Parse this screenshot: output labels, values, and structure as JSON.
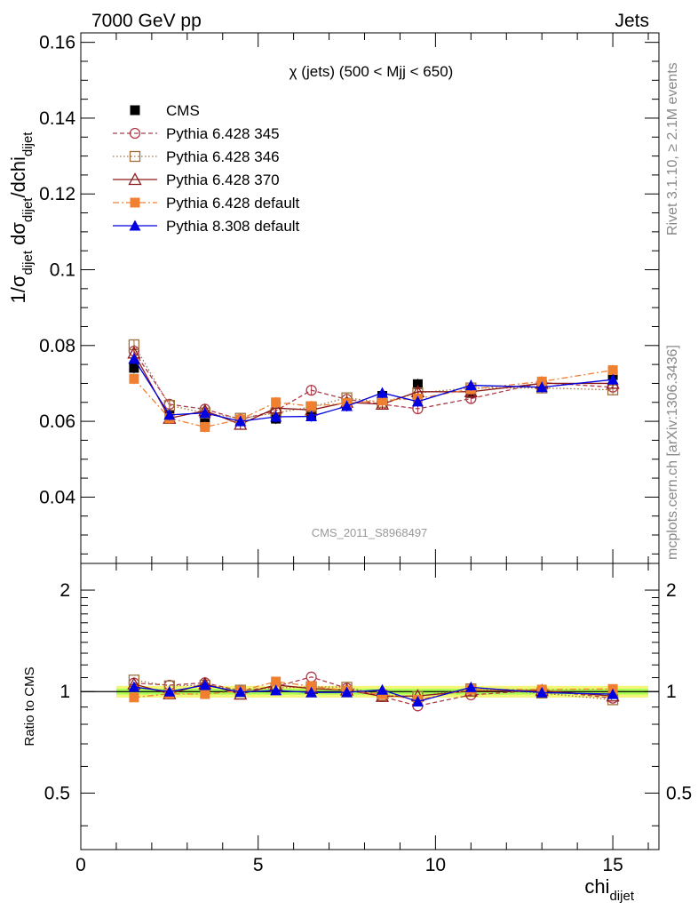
{
  "header": {
    "left": "7000 GeV pp",
    "right": "Jets"
  },
  "side_labels": {
    "rivet": "Rivet 3.1.10, ≥ 2.1M events",
    "mcplots": "mcplots.cern.ch [arXiv:1306.3436]"
  },
  "chart_data": [
    {
      "type": "scatter",
      "title": "χ (jets) (500 < Mjj <  650)",
      "ylabel": "1/σ_dijet dσ_dijet/dchi_dijet",
      "xlabel": "chi_dijet",
      "watermark": "CMS_2011_S8968497",
      "xlim": [
        0,
        16.3
      ],
      "ylim": [
        0.0225,
        0.1625
      ],
      "x_ticks": [
        "0",
        "5",
        "10",
        "15"
      ],
      "y_ticks": [
        "0.04",
        "0.06",
        "0.08",
        "0.1",
        "0.12",
        "0.14",
        "0.16"
      ],
      "legend_position": "top-left",
      "x": [
        1.5,
        2.5,
        3.5,
        4.5,
        5.5,
        6.5,
        7.5,
        8.5,
        9.5,
        11.0,
        13.0,
        15.0
      ],
      "series": [
        {
          "name": "CMS",
          "color": "#000000",
          "marker": "square-filled",
          "line": "none",
          "values": [
            0.0741,
            0.0617,
            0.0595,
            0.0602,
            0.0607,
            0.0617,
            0.0643,
            0.0667,
            0.0698,
            0.0675,
            0.0695,
            0.0722
          ]
        },
        {
          "name": "Pythia 6.428 345",
          "color": "#b03a48",
          "marker": "circle-open",
          "line": "dashed",
          "values": [
            0.0785,
            0.0645,
            0.0632,
            0.0605,
            0.0628,
            0.0682,
            0.0658,
            0.0645,
            0.0633,
            0.066,
            0.0702,
            0.069
          ]
        },
        {
          "name": "Pythia 6.428 346",
          "color": "#a0703a",
          "marker": "square-open",
          "line": "dotted",
          "values": [
            0.0802,
            0.0642,
            0.0622,
            0.0608,
            0.0622,
            0.0638,
            0.0662,
            0.065,
            0.0675,
            0.0688,
            0.0688,
            0.0683
          ]
        },
        {
          "name": "Pythia 6.428 370",
          "color": "#8b1a1a",
          "marker": "triangle-open",
          "line": "solid",
          "values": [
            0.078,
            0.0608,
            0.0628,
            0.0592,
            0.0635,
            0.063,
            0.065,
            0.0645,
            0.0678,
            0.0678,
            0.07,
            0.07
          ]
        },
        {
          "name": "Pythia 6.428 default",
          "color": "#f07f30",
          "marker": "square-filled",
          "line": "dashdot",
          "values": [
            0.0712,
            0.0608,
            0.0585,
            0.0605,
            0.065,
            0.064,
            0.0648,
            0.0655,
            0.066,
            0.0685,
            0.0705,
            0.0735
          ]
        },
        {
          "name": "Pythia 8.308 default",
          "color": "#0000e0",
          "marker": "triangle-filled",
          "line": "solid",
          "values": [
            0.0765,
            0.0617,
            0.0622,
            0.06,
            0.0612,
            0.0613,
            0.064,
            0.0675,
            0.0652,
            0.0695,
            0.069,
            0.071
          ]
        }
      ]
    },
    {
      "type": "scatter",
      "ylabel": "Ratio to CMS",
      "xlabel": "chi_dijet",
      "xlim": [
        0,
        16.3
      ],
      "ylim": [
        0.34,
        2.4
      ],
      "y_scale": "log",
      "y_ticks": [
        "0.5",
        "1",
        "2"
      ],
      "band": {
        "inner_color": "#aaff55",
        "outer_color": "#f5f57a",
        "inner": 0.02,
        "outer": 0.04
      },
      "x": [
        1.5,
        2.5,
        3.5,
        4.5,
        5.5,
        6.5,
        7.5,
        8.5,
        9.5,
        11.0,
        13.0,
        15.0
      ],
      "series": [
        {
          "name": "Pythia 6.428 345",
          "values": [
            1.06,
            1.045,
            1.062,
            1.005,
            1.035,
            1.105,
            1.023,
            0.967,
            0.907,
            0.978,
            1.01,
            0.956
          ]
        },
        {
          "name": "Pythia 6.428 346",
          "values": [
            1.082,
            1.04,
            1.045,
            1.01,
            1.025,
            1.034,
            1.03,
            0.975,
            0.967,
            1.019,
            0.99,
            0.946
          ]
        },
        {
          "name": "Pythia 6.428 370",
          "values": [
            1.053,
            0.985,
            1.055,
            0.983,
            1.046,
            1.021,
            1.011,
            0.967,
            0.971,
            1.004,
            1.007,
            0.97
          ]
        },
        {
          "name": "Pythia 6.428 default",
          "values": [
            0.961,
            0.985,
            0.983,
            1.005,
            1.071,
            1.037,
            1.008,
            0.982,
            0.946,
            1.015,
            1.014,
            1.018
          ]
        },
        {
          "name": "Pythia 8.308 default",
          "values": [
            1.032,
            1.0,
            1.045,
            0.997,
            1.008,
            0.994,
            0.995,
            1.012,
            0.934,
            1.03,
            0.993,
            0.983
          ]
        }
      ]
    }
  ]
}
